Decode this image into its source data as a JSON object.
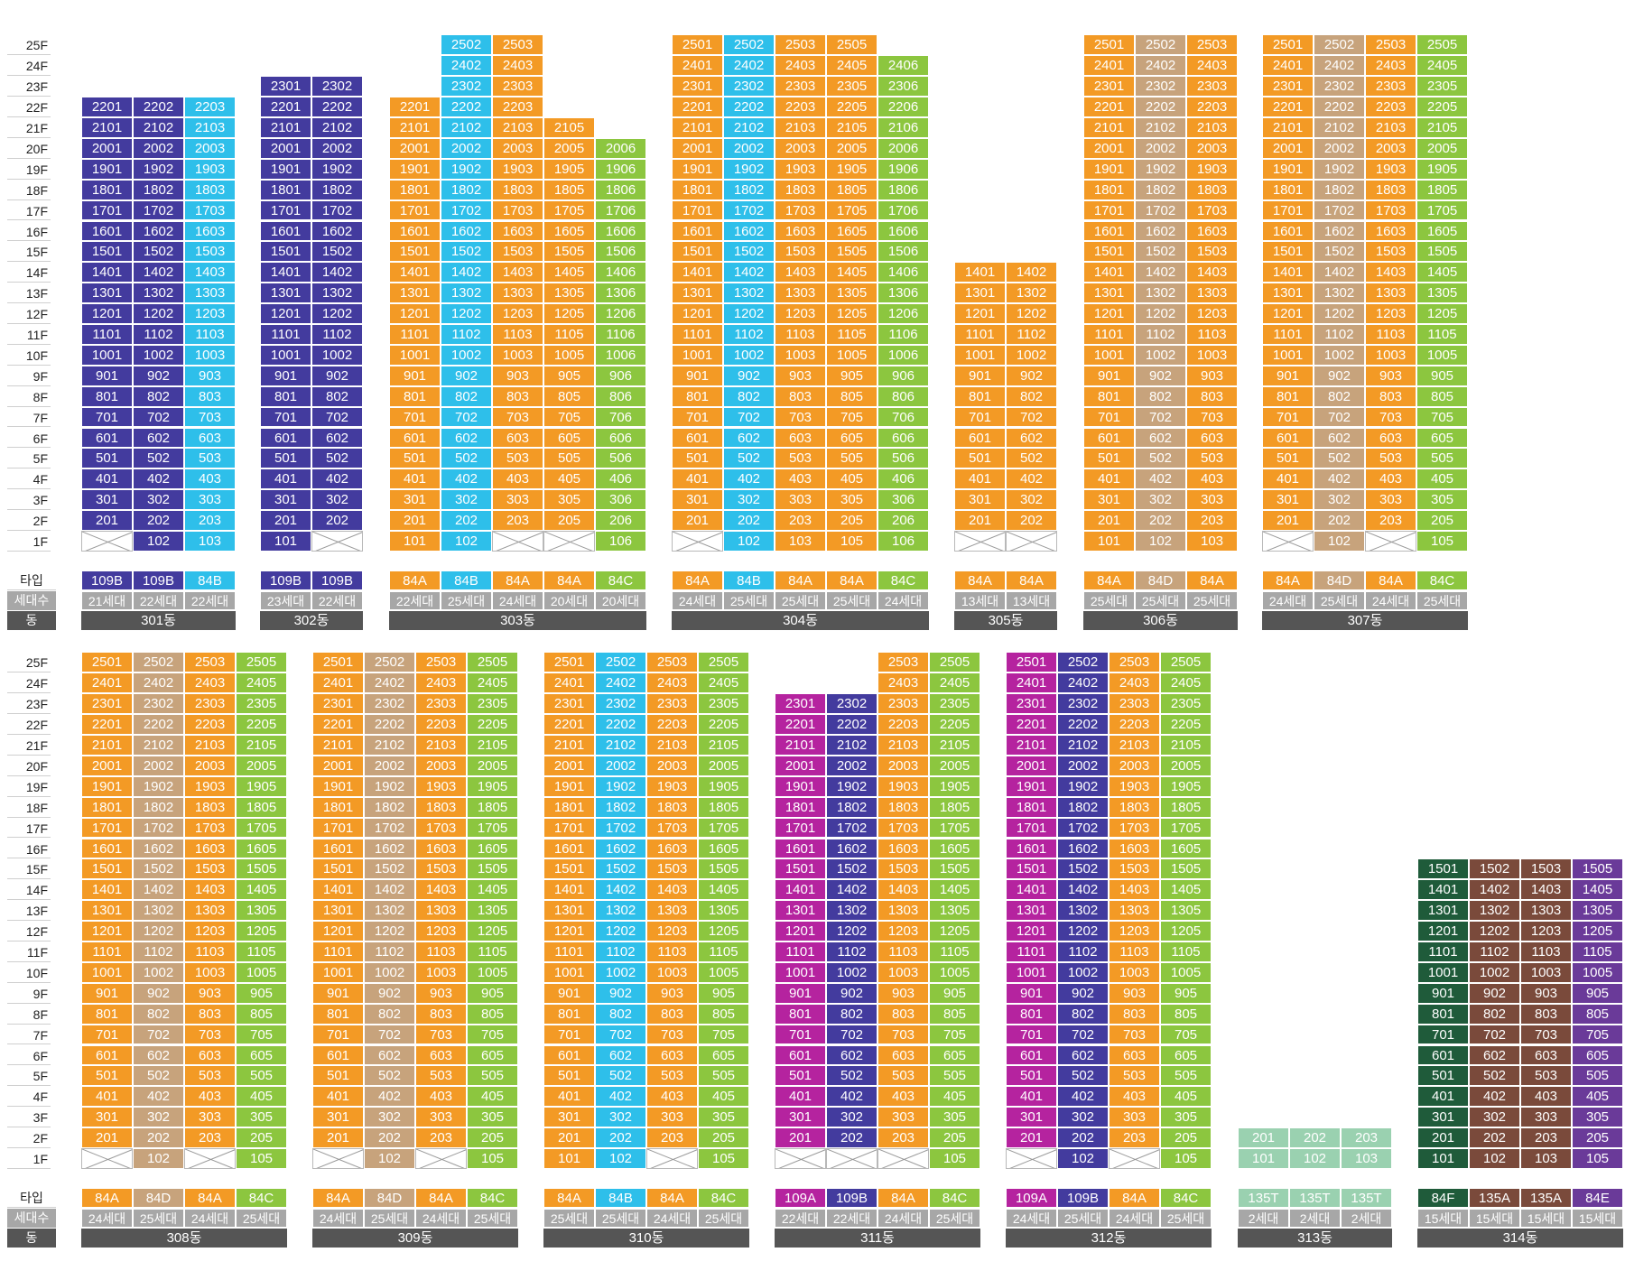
{
  "row_labels": {
    "type": "타입",
    "households": "세대수",
    "building": "동"
  },
  "floor_labels": [
    "25F",
    "24F",
    "23F",
    "22F",
    "21F",
    "20F",
    "19F",
    "18F",
    "17F",
    "16F",
    "15F",
    "14F",
    "13F",
    "12F",
    "11F",
    "10F",
    "9F",
    "8F",
    "7F",
    "6F",
    "5F",
    "4F",
    "3F",
    "2F",
    "1F"
  ],
  "colors": {
    "84A": "#f39a25",
    "84B": "#2ebfea",
    "84C": "#8cc63f",
    "84D": "#c7a37c",
    "109A": "#b5239f",
    "109B": "#433b9e",
    "84E": "#6a3a99",
    "84F": "#1f5b3a",
    "135A": "#7a4a3b",
    "135T": "#9ad1b0",
    "empty": "#ffffff"
  },
  "buildings": [
    {
      "name": "301동",
      "row": 0,
      "columns": [
        {
          "type": "109B",
          "households": "21세대",
          "line": "01",
          "top": 22,
          "empty_floors": [
            1
          ]
        },
        {
          "type": "109B",
          "households": "22세대",
          "line": "02",
          "top": 22
        },
        {
          "type": "84B",
          "households": "22세대",
          "line": "03",
          "top": 22
        }
      ]
    },
    {
      "name": "302동",
      "row": 0,
      "columns": [
        {
          "type": "109B",
          "households": "23세대",
          "line": "01",
          "top": 23
        },
        {
          "type": "109B",
          "households": "22세대",
          "line": "02",
          "top": 23,
          "empty_floors": [
            1
          ]
        }
      ]
    },
    {
      "name": "303동",
      "row": 0,
      "columns": [
        {
          "type": "84A",
          "households": "22세대",
          "line": "01",
          "top": 22
        },
        {
          "type": "84B",
          "households": "25세대",
          "line": "02",
          "top": 25
        },
        {
          "type": "84A",
          "households": "24세대",
          "line": "03",
          "top": 25,
          "empty_floors": [
            1
          ]
        },
        {
          "type": "84A",
          "households": "20세대",
          "line": "05",
          "top": 21,
          "empty_floors": [
            1
          ]
        },
        {
          "type": "84C",
          "households": "20세대",
          "line": "06",
          "top": 20
        }
      ]
    },
    {
      "name": "304동",
      "row": 0,
      "columns": [
        {
          "type": "84A",
          "households": "24세대",
          "line": "01",
          "top": 25,
          "empty_floors": [
            1
          ]
        },
        {
          "type": "84B",
          "households": "25세대",
          "line": "02",
          "top": 25
        },
        {
          "type": "84A",
          "households": "25세대",
          "line": "03",
          "top": 25
        },
        {
          "type": "84A",
          "households": "25세대",
          "line": "05",
          "top": 25
        },
        {
          "type": "84C",
          "households": "24세대",
          "line": "06",
          "top": 24
        }
      ]
    },
    {
      "name": "305동",
      "row": 0,
      "columns": [
        {
          "type": "84A",
          "households": "13세대",
          "line": "01",
          "top": 14,
          "empty_floors": [
            1
          ]
        },
        {
          "type": "84A",
          "households": "13세대",
          "line": "02",
          "top": 14,
          "empty_floors": [
            1
          ]
        }
      ]
    },
    {
      "name": "306동",
      "row": 0,
      "columns": [
        {
          "type": "84A",
          "households": "25세대",
          "line": "01",
          "top": 25
        },
        {
          "type": "84D",
          "households": "25세대",
          "line": "02",
          "top": 25
        },
        {
          "type": "84A",
          "households": "25세대",
          "line": "03",
          "top": 25
        }
      ]
    },
    {
      "name": "307동",
      "row": 0,
      "columns": [
        {
          "type": "84A",
          "households": "24세대",
          "line": "01",
          "top": 25,
          "empty_floors": [
            1
          ]
        },
        {
          "type": "84D",
          "households": "25세대",
          "line": "02",
          "top": 25
        },
        {
          "type": "84A",
          "households": "24세대",
          "line": "03",
          "top": 25,
          "empty_floors": [
            1
          ]
        },
        {
          "type": "84C",
          "households": "25세대",
          "line": "05",
          "top": 25
        }
      ]
    },
    {
      "name": "308동",
      "row": 1,
      "columns": [
        {
          "type": "84A",
          "households": "24세대",
          "line": "01",
          "top": 25,
          "empty_floors": [
            1
          ]
        },
        {
          "type": "84D",
          "households": "25세대",
          "line": "02",
          "top": 25
        },
        {
          "type": "84A",
          "households": "24세대",
          "line": "03",
          "top": 25,
          "empty_floors": [
            1
          ]
        },
        {
          "type": "84C",
          "households": "25세대",
          "line": "05",
          "top": 25
        }
      ]
    },
    {
      "name": "309동",
      "row": 1,
      "columns": [
        {
          "type": "84A",
          "households": "24세대",
          "line": "01",
          "top": 25,
          "empty_floors": [
            1
          ]
        },
        {
          "type": "84D",
          "households": "25세대",
          "line": "02",
          "top": 25
        },
        {
          "type": "84A",
          "households": "24세대",
          "line": "03",
          "top": 25,
          "empty_floors": [
            1
          ]
        },
        {
          "type": "84C",
          "households": "25세대",
          "line": "05",
          "top": 25
        }
      ]
    },
    {
      "name": "310동",
      "row": 1,
      "columns": [
        {
          "type": "84A",
          "households": "25세대",
          "line": "01",
          "top": 25
        },
        {
          "type": "84B",
          "households": "25세대",
          "line": "02",
          "top": 25
        },
        {
          "type": "84A",
          "households": "24세대",
          "line": "03",
          "top": 25,
          "empty_floors": [
            1
          ]
        },
        {
          "type": "84C",
          "households": "25세대",
          "line": "05",
          "top": 25
        }
      ]
    },
    {
      "name": "311동",
      "row": 1,
      "columns": [
        {
          "type": "109A",
          "households": "22세대",
          "line": "01",
          "top": 23,
          "empty_floors": [
            1
          ]
        },
        {
          "type": "109B",
          "households": "22세대",
          "line": "02",
          "top": 23,
          "empty_floors": [
            1
          ]
        },
        {
          "type": "84A",
          "households": "24세대",
          "line": "03",
          "top": 25,
          "empty_floors": [
            1
          ]
        },
        {
          "type": "84C",
          "households": "25세대",
          "line": "05",
          "top": 25
        }
      ]
    },
    {
      "name": "312동",
      "row": 1,
      "columns": [
        {
          "type": "109A",
          "households": "24세대",
          "line": "01",
          "top": 25,
          "empty_floors": [
            1
          ]
        },
        {
          "type": "109B",
          "households": "25세대",
          "line": "02",
          "top": 25
        },
        {
          "type": "84A",
          "households": "24세대",
          "line": "03",
          "top": 25,
          "empty_floors": [
            1
          ]
        },
        {
          "type": "84C",
          "households": "25세대",
          "line": "05",
          "top": 25
        }
      ]
    },
    {
      "name": "313동",
      "row": 1,
      "columns": [
        {
          "type": "135T",
          "households": "2세대",
          "line": "01",
          "top": 2
        },
        {
          "type": "135T",
          "households": "2세대",
          "line": "02",
          "top": 2
        },
        {
          "type": "135T",
          "households": "2세대",
          "line": "03",
          "top": 2
        }
      ]
    },
    {
      "name": "314동",
      "row": 1,
      "columns": [
        {
          "type": "84F",
          "households": "15세대",
          "line": "01",
          "top": 15
        },
        {
          "type": "135A",
          "households": "15세대",
          "line": "02",
          "top": 15
        },
        {
          "type": "135A",
          "households": "15세대",
          "line": "03",
          "top": 15
        },
        {
          "type": "84E",
          "households": "15세대",
          "line": "05",
          "top": 15
        }
      ]
    }
  ]
}
